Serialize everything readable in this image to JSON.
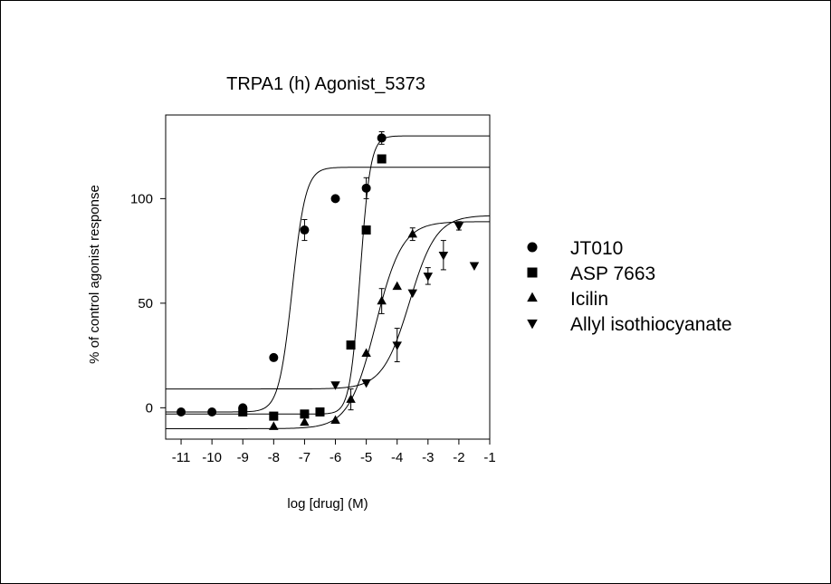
{
  "chart_data": {
    "type": "scatter",
    "title": "TRPA1 (h) Agonist_5373",
    "xlabel": "log [drug] (M)",
    "ylabel": "% of control agonist response",
    "xlim": [
      -11.5,
      -1
    ],
    "ylim": [
      -15,
      140
    ],
    "xticks": [
      -11,
      -10,
      -9,
      -8,
      -7,
      -6,
      -5,
      -4,
      -3,
      -2,
      -1
    ],
    "yticks": [
      0,
      50,
      100
    ],
    "grid": false,
    "legend_position": "right",
    "series": [
      {
        "name": "JT010",
        "marker": "circle",
        "points": [
          {
            "x": -11,
            "y": -2
          },
          {
            "x": -10,
            "y": -2
          },
          {
            "x": -9,
            "y": 0
          },
          {
            "x": -8,
            "y": 24
          },
          {
            "x": -7,
            "y": 85,
            "err": 5
          },
          {
            "x": -6,
            "y": 100
          },
          {
            "x": -5,
            "y": 105,
            "err": 5
          },
          {
            "x": -4.5,
            "y": 129,
            "err": 3
          }
        ],
        "fit": {
          "bottom": -2,
          "top": 115,
          "logEC50": -7.4,
          "hill": 2
        }
      },
      {
        "name": "ASP 7663",
        "marker": "square",
        "points": [
          {
            "x": -9,
            "y": -2
          },
          {
            "x": -8,
            "y": -4
          },
          {
            "x": -7,
            "y": -3
          },
          {
            "x": -6.5,
            "y": -2
          },
          {
            "x": -5.5,
            "y": 30
          },
          {
            "x": -5,
            "y": 85
          },
          {
            "x": -4.5,
            "y": 119
          }
        ],
        "fit": {
          "bottom": -3,
          "top": 130,
          "logEC50": -5.2,
          "hill": 2.6
        }
      },
      {
        "name": "Icilin",
        "marker": "triangle-up",
        "points": [
          {
            "x": -8,
            "y": -9
          },
          {
            "x": -7,
            "y": -7
          },
          {
            "x": -6,
            "y": -6
          },
          {
            "x": -5.5,
            "y": 4,
            "err": 5
          },
          {
            "x": -5,
            "y": 26
          },
          {
            "x": -4.5,
            "y": 51,
            "err": 6
          },
          {
            "x": -4,
            "y": 58
          },
          {
            "x": -3.5,
            "y": 83,
            "err": 3
          }
        ],
        "fit": {
          "bottom": -10,
          "top": 89,
          "logEC50": -4.7,
          "hill": 1.0
        }
      },
      {
        "name": "Allyl isothiocyanate",
        "marker": "triangle-down",
        "points": [
          {
            "x": -6,
            "y": 11
          },
          {
            "x": -5,
            "y": 12
          },
          {
            "x": -4,
            "y": 30,
            "err": 8
          },
          {
            "x": -3.5,
            "y": 55
          },
          {
            "x": -3,
            "y": 63,
            "err": 4
          },
          {
            "x": -2.5,
            "y": 73,
            "err": 7
          },
          {
            "x": -2,
            "y": 87,
            "err": 2
          },
          {
            "x": -1.5,
            "y": 68
          }
        ],
        "fit": {
          "bottom": 9,
          "top": 92,
          "logEC50": -3.6,
          "hill": 1.0
        }
      }
    ]
  }
}
